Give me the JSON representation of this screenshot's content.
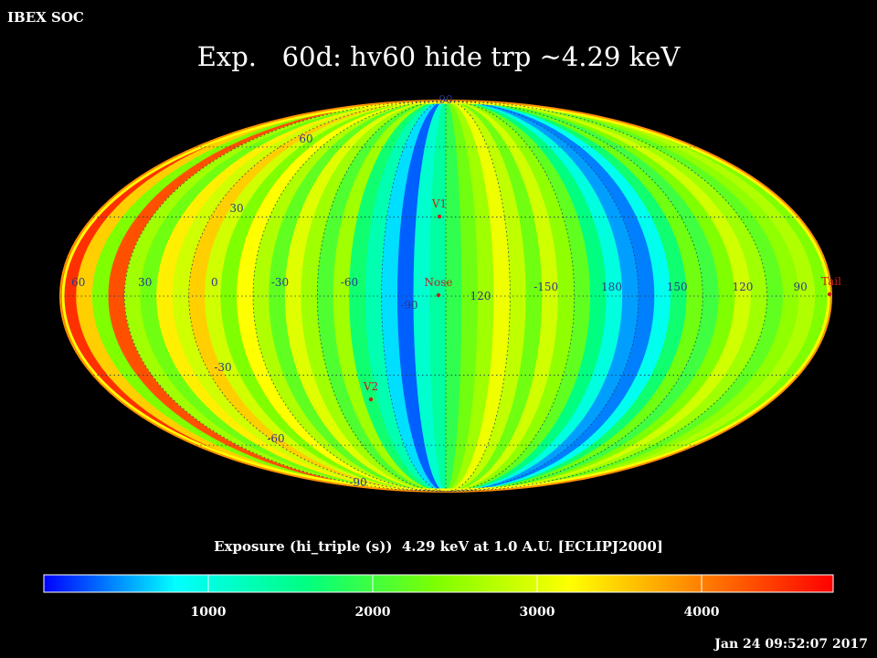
{
  "header": {
    "org": "IBEX SOC",
    "title": "Exp.   60d: hv60 hide trp ~4.29 keV"
  },
  "caption": "Exposure (hi_triple (s))  4.29 keV at 1.0 A.U. [ECLIPJ2000]",
  "timestamp": "Jan 24 09:52:07 2017",
  "chart_data": {
    "type": "heatmap",
    "projection": "mollweide",
    "title": "Exp.   60d: hv60 hide trp ~4.29 keV",
    "colorbar": {
      "label": "Exposure (hi_triple (s))  4.29 keV at 1.0 A.U. [ECLIPJ2000]",
      "range": [
        0,
        4800
      ],
      "ticks": [
        1000,
        2000,
        3000,
        4000
      ],
      "colors": [
        "#0000ff",
        "#00ffff",
        "#00ff80",
        "#80ff00",
        "#ffff00",
        "#ff8000",
        "#ff0000"
      ]
    },
    "longitude_labels": [
      "60",
      "30",
      "0",
      "-30",
      "-60",
      "-90",
      "120",
      "-150",
      "180",
      "150",
      "120",
      "90"
    ],
    "latitude_labels": [
      "90",
      "60",
      "30",
      "-30",
      "-60",
      "-90"
    ],
    "grid": true,
    "markers": [
      {
        "name": "V1",
        "color": "#c81e1e"
      },
      {
        "name": "Nose",
        "color": "#c81e1e"
      },
      {
        "name": "V2",
        "color": "#c81e1e"
      },
      {
        "name": "Tail",
        "color": "#c81e1e"
      }
    ],
    "strip_values": [
      4500,
      3500,
      2400,
      4300,
      2600,
      2300,
      3300,
      2900,
      3500,
      2900,
      2400,
      3200,
      2700,
      2200,
      3000,
      2600,
      2100,
      2600,
      1700,
      1300,
      700,
      300,
      1100,
      1400,
      1900,
      2300,
      2600,
      3100,
      2800,
      2300,
      2900,
      2500,
      2200,
      1600,
      1000,
      500,
      400,
      900,
      1700,
      2300,
      2000,
      2400,
      2900,
      2600,
      2200,
      2500,
      2700,
      2400
    ]
  }
}
